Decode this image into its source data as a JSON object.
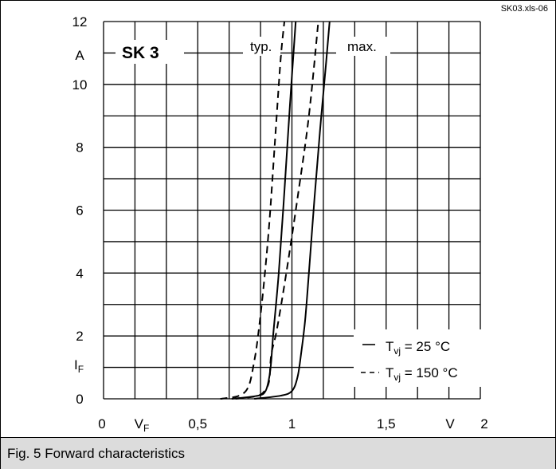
{
  "figure": {
    "source_tag": "SK03.xls-06",
    "caption": "Fig. 5 Forward characteristics",
    "device_label": "SK 3",
    "label_typ": "typ.",
    "label_max": "max.",
    "y_unit": "A",
    "y_symbol": "I",
    "y_symbol_sub": "F",
    "x_unit": "V",
    "x_symbol": "V",
    "x_symbol_sub": "F",
    "legend": [
      {
        "line": "solid",
        "symbol": "T",
        "sub": "vj",
        "text": " =   25 °C"
      },
      {
        "line": "dashed",
        "symbol": "T",
        "sub": "vj",
        "text": " = 150 °C"
      }
    ]
  },
  "chart_data": {
    "type": "line",
    "title": "Fig. 5 Forward characteristics",
    "xlabel": "VF (V)",
    "ylabel": "IF (A)",
    "xlim": [
      0,
      2
    ],
    "ylim": [
      0,
      12
    ],
    "x_ticks": [
      0,
      0.5,
      1,
      1.5,
      2
    ],
    "x_tick_labels": [
      "0",
      "0,5",
      "1",
      "1,5",
      "2"
    ],
    "y_ticks": [
      0,
      2,
      4,
      6,
      8,
      10,
      12
    ],
    "y_tick_labels": [
      "0",
      "2",
      "4",
      "6",
      "8",
      "10",
      "12"
    ],
    "grid": true,
    "legend_position": "bottom-right",
    "series": [
      {
        "name": "typ. Tvj = 150 °C",
        "line": "dashed",
        "color": "#000000",
        "points": [
          [
            0.62,
            0
          ],
          [
            0.72,
            0.1
          ],
          [
            0.77,
            0.4
          ],
          [
            0.8,
            1.2
          ],
          [
            0.82,
            2
          ],
          [
            0.85,
            3.6
          ],
          [
            0.88,
            5.6
          ],
          [
            0.91,
            8.2
          ],
          [
            0.94,
            10.8
          ],
          [
            0.96,
            12
          ]
        ]
      },
      {
        "name": "typ. Tvj = 25 °C",
        "line": "solid",
        "color": "#000000",
        "points": [
          [
            0.68,
            0
          ],
          [
            0.82,
            0.1
          ],
          [
            0.86,
            0.25
          ],
          [
            0.88,
            0.7
          ],
          [
            0.89,
            1.2
          ],
          [
            0.9,
            2
          ],
          [
            0.93,
            4
          ],
          [
            0.96,
            6.6
          ],
          [
            0.99,
            9.4
          ],
          [
            1.02,
            12
          ]
        ]
      },
      {
        "name": "max. Tvj = 150 °C",
        "line": "dashed",
        "color": "#000000",
        "points": [
          [
            0.7,
            0
          ],
          [
            0.82,
            0.1
          ],
          [
            0.86,
            0.3
          ],
          [
            0.88,
            0.6
          ],
          [
            0.89,
            1.4
          ],
          [
            0.92,
            2.2
          ],
          [
            0.97,
            4
          ],
          [
            1.03,
            6.4
          ],
          [
            1.09,
            9
          ],
          [
            1.14,
            12
          ]
        ]
      },
      {
        "name": "max. Tvj = 25 °C",
        "line": "solid",
        "color": "#000000",
        "points": [
          [
            0.8,
            0
          ],
          [
            0.94,
            0.1
          ],
          [
            1.0,
            0.25
          ],
          [
            1.03,
            0.7
          ],
          [
            1.05,
            1.5
          ],
          [
            1.07,
            2.5
          ],
          [
            1.09,
            4
          ],
          [
            1.12,
            6.4
          ],
          [
            1.15,
            8.6
          ],
          [
            1.18,
            10.6
          ],
          [
            1.2,
            12
          ]
        ]
      }
    ]
  }
}
